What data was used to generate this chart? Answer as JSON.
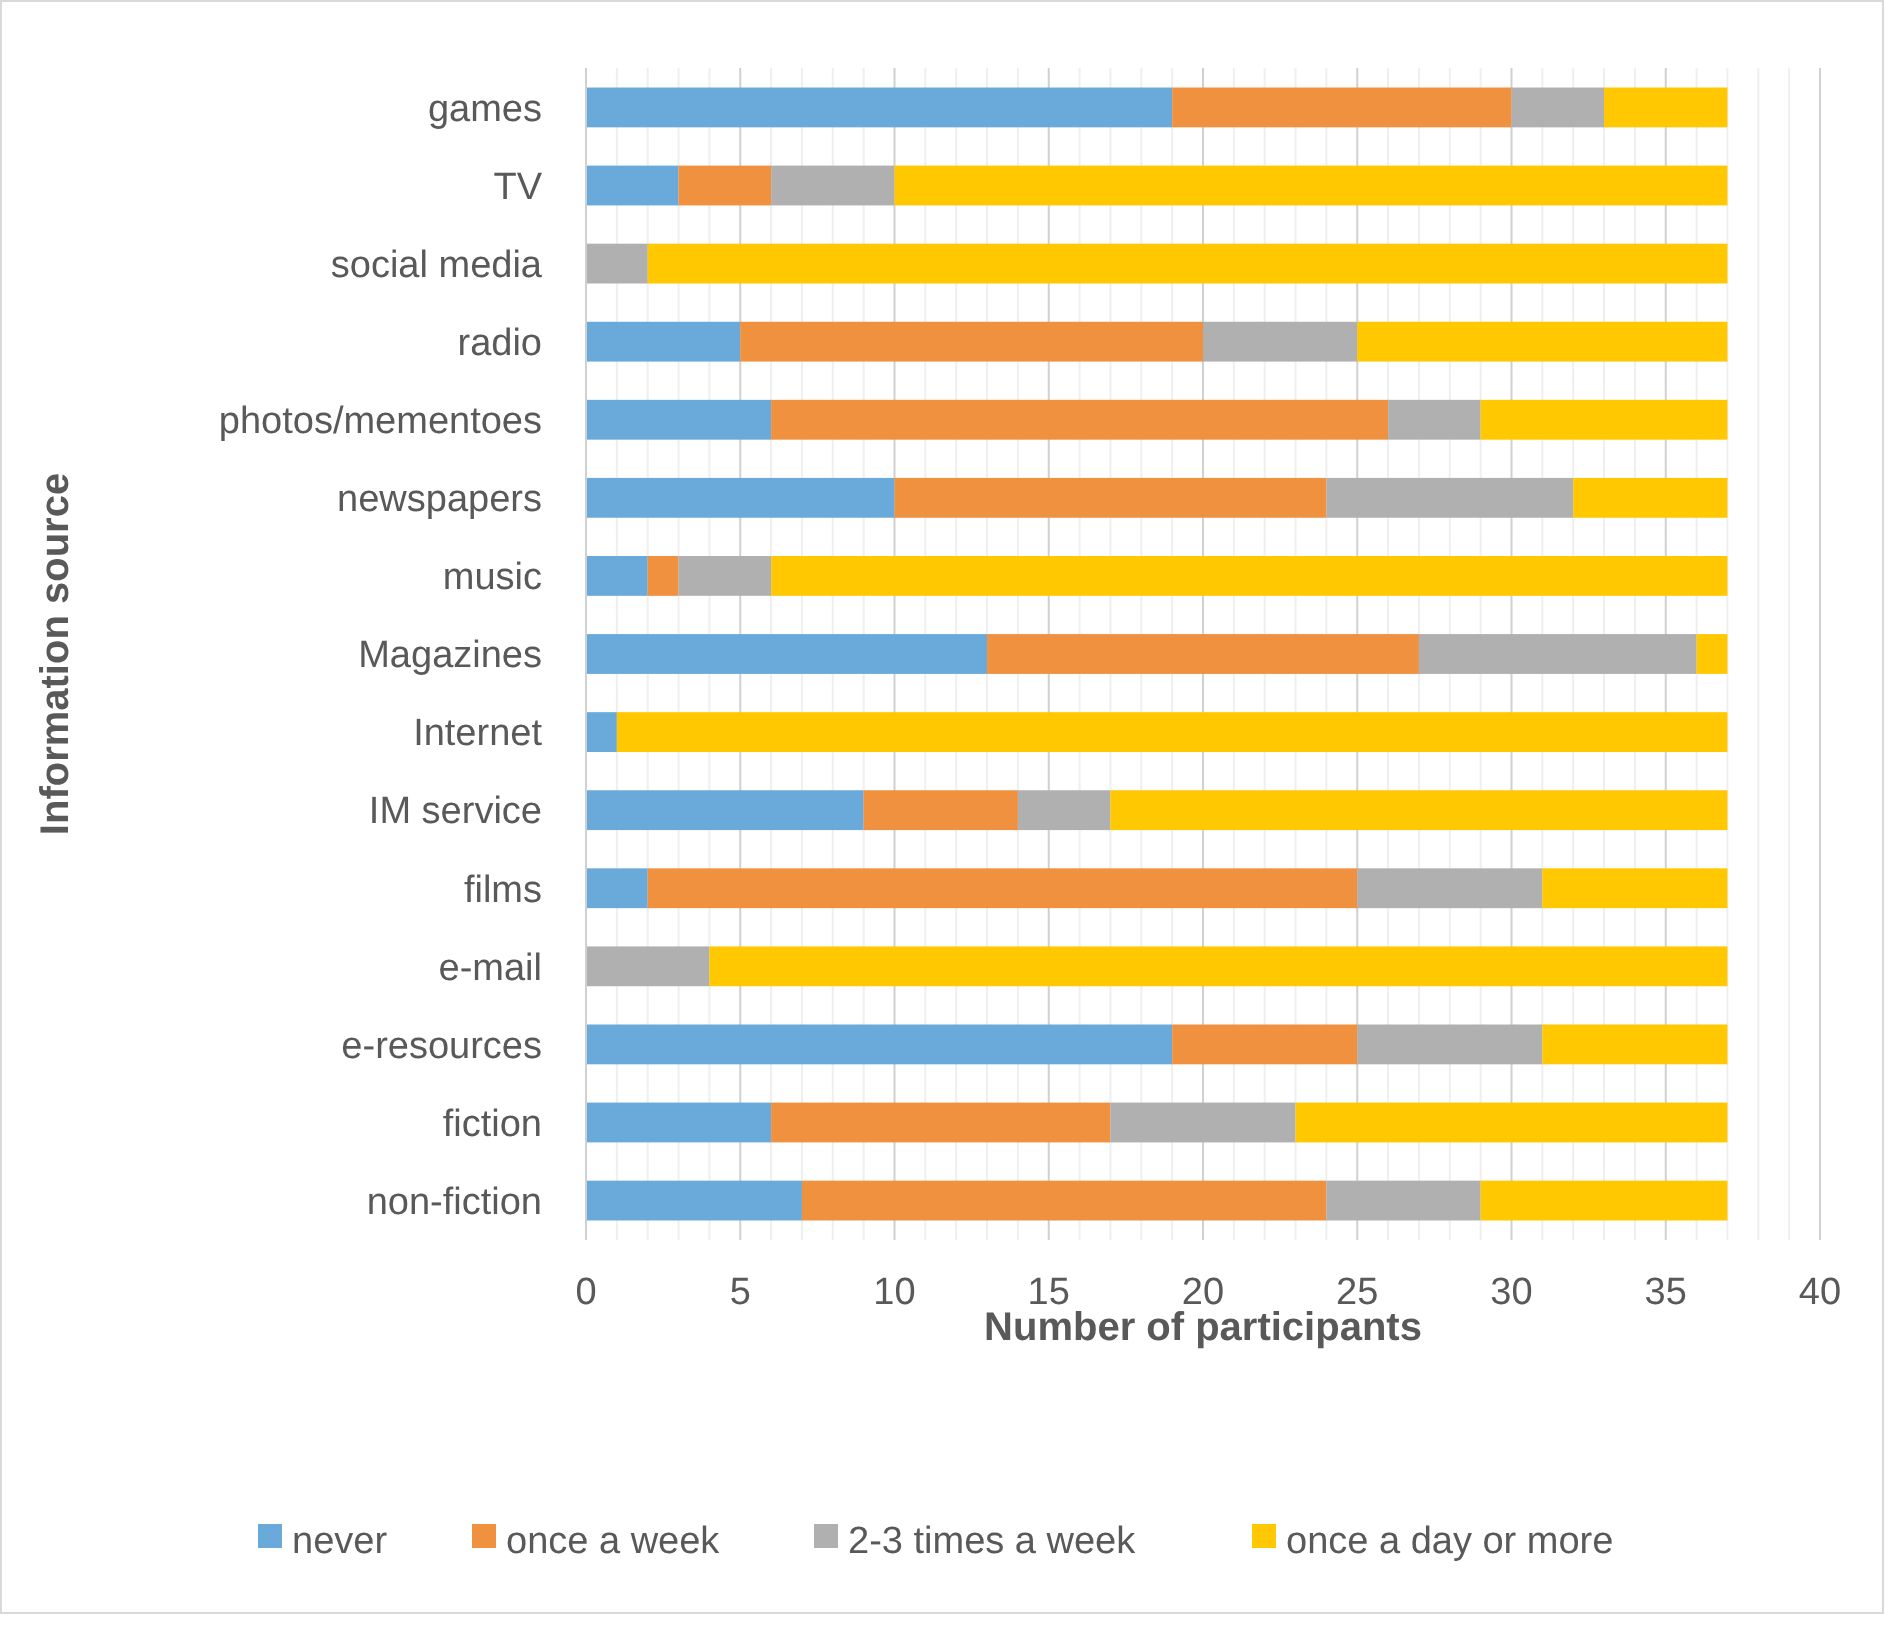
{
  "chart_data": {
    "type": "bar",
    "orientation": "horizontal",
    "stacked": true,
    "xlabel": "Number of participants",
    "ylabel": "Information source",
    "categories": [
      "games",
      "TV",
      "social media",
      "radio",
      "photos/mementoes",
      "newspapers",
      "music",
      "Magazines",
      "Internet",
      "IM service",
      "films",
      "e-mail",
      "e-resources",
      "fiction",
      "non-fiction"
    ],
    "series": [
      {
        "name": "never",
        "color": "#6aaadb",
        "values": [
          19,
          3,
          0,
          5,
          6,
          10,
          2,
          13,
          1,
          9,
          2,
          0,
          19,
          6,
          7
        ]
      },
      {
        "name": "once a week",
        "color": "#f0913f",
        "values": [
          11,
          3,
          0,
          15,
          20,
          14,
          1,
          14,
          0,
          5,
          23,
          0,
          6,
          11,
          17
        ]
      },
      {
        "name": "2-3 times a week",
        "color": "#b0b0b0",
        "values": [
          3,
          4,
          2,
          5,
          3,
          8,
          3,
          9,
          0,
          3,
          6,
          4,
          6,
          6,
          5
        ]
      },
      {
        "name": "once a day or more",
        "color": "#ffc800",
        "values": [
          4,
          27,
          35,
          12,
          8,
          5,
          31,
          1,
          36,
          20,
          6,
          33,
          6,
          14,
          8
        ]
      }
    ],
    "xlim": [
      0,
      40
    ],
    "xticks": [
      0,
      {
        "value": 1,
        "label": null
      },
      {
        "value": 2,
        "label": null
      },
      {
        "value": 3,
        "label": null
      },
      {
        "value": 4,
        "label": null
      },
      5,
      {
        "value": 6,
        "label": null
      },
      {
        "value": 7,
        "label": null
      },
      {
        "value": 8,
        "label": null
      },
      {
        "value": 9,
        "label": null
      },
      10,
      {
        "value": 11,
        "label": null
      },
      {
        "value": 12,
        "label": null
      },
      {
        "value": 13,
        "label": null
      },
      {
        "value": 14,
        "label": null
      },
      15,
      {
        "value": 16,
        "label": null
      },
      {
        "value": 17,
        "label": null
      },
      {
        "value": 18,
        "label": null
      },
      {
        "value": 19,
        "label": null
      },
      20,
      {
        "value": 21,
        "label": null
      },
      {
        "value": 22,
        "label": null
      },
      {
        "value": 23,
        "label": null
      },
      {
        "value": 24,
        "label": null
      },
      25,
      {
        "value": 26,
        "label": null
      },
      {
        "value": 27,
        "label": null
      },
      {
        "value": 28,
        "label": null
      },
      {
        "value": 29,
        "label": null
      },
      30,
      {
        "value": 31,
        "label": null
      },
      {
        "value": 32,
        "label": null
      },
      {
        "value": 33,
        "label": null
      },
      {
        "value": 34,
        "label": null
      },
      35,
      {
        "value": 36,
        "label": null
      },
      {
        "value": 37,
        "label": null
      },
      {
        "value": 38,
        "label": null
      },
      {
        "value": 39,
        "label": null
      },
      40
    ],
    "grid": "x",
    "legend": "bottom"
  }
}
